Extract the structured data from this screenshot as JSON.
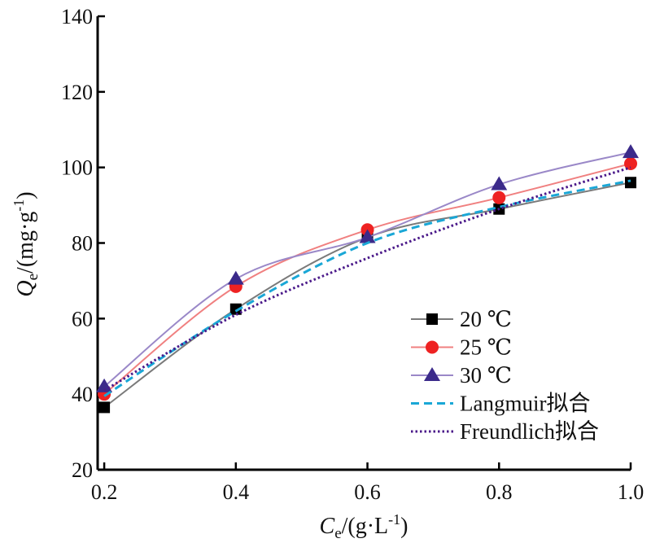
{
  "chart_data": {
    "type": "line",
    "x": [
      0.2,
      0.4,
      0.6,
      0.8,
      1.0
    ],
    "xticks": [
      "0.2",
      "0.4",
      "0.6",
      "0.8",
      "1.0"
    ],
    "yticks": [
      "20",
      "40",
      "60",
      "80",
      "100",
      "120",
      "140"
    ],
    "xlim": [
      0.19,
      1.0
    ],
    "ylim": [
      20,
      140
    ],
    "xlabel": {
      "main": "C",
      "sub": "e",
      "unit": "/(g·L",
      "sup": "-1",
      "close": ")"
    },
    "ylabel": {
      "main": "Q",
      "sub": "e",
      "unit": "/(mg·g",
      "sup": "-1",
      "close": ")"
    },
    "grid": false,
    "legend_position": "bottom-right",
    "series": [
      {
        "name": "20 ℃",
        "marker": "square",
        "line": "solid",
        "color": "#7a7a7a",
        "marker_color": "#000000",
        "values": [
          36.5,
          62.5,
          81.5,
          89,
          96
        ]
      },
      {
        "name": "25 ℃",
        "marker": "circle",
        "line": "solid",
        "color": "#f08080",
        "marker_color": "#ee2222",
        "values": [
          40,
          68.5,
          83.5,
          92,
          101
        ]
      },
      {
        "name": "30 ℃",
        "marker": "triangle",
        "line": "solid",
        "color": "#9a88c8",
        "marker_color": "#3b2a8a",
        "values": [
          42,
          70.5,
          81.5,
          95.5,
          104
        ]
      },
      {
        "name": "Langmuir拟合",
        "marker": "none",
        "line": "dashed",
        "color": "#1aa7d6",
        "values": [
          39.5,
          62,
          80,
          89.5,
          96.5
        ]
      },
      {
        "name": "Freundlich拟合",
        "marker": "none",
        "line": "dotted",
        "color": "#4b1a8a",
        "values": [
          41,
          61,
          76,
          89,
          100
        ]
      }
    ]
  }
}
